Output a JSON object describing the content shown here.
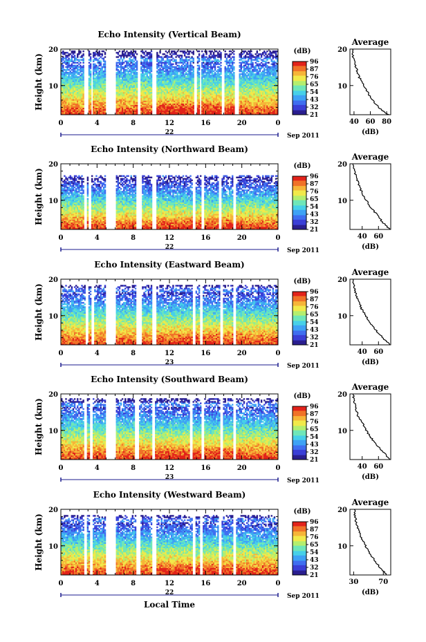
{
  "palette": [
    "#2b1f8f",
    "#3a3fd6",
    "#3f6ef0",
    "#3ea2f5",
    "#47d0e8",
    "#6fe6b8",
    "#b4ee6e",
    "#f1e94a",
    "#f6b538",
    "#f07228",
    "#e2231a"
  ],
  "colorbar": {
    "unit": "(dB)",
    "ticks": [
      "96",
      "87",
      "76",
      "65",
      "54",
      "43",
      "32",
      "21"
    ]
  },
  "avg_title": "Average",
  "avg_unit": "(dB)",
  "footer": {
    "date": "Sep 2011",
    "xlabel": "Local Time"
  },
  "chart_data": [
    {
      "type": "heatmap",
      "title": "Echo Intensity (Vertical Beam)",
      "ylabel": "Height (km)",
      "ylim": [
        2,
        20
      ],
      "yticks": [
        "20",
        "10"
      ],
      "xlim": [
        0,
        24
      ],
      "xticks": [
        "0",
        "4",
        "8",
        "12",
        "16",
        "20",
        "0"
      ],
      "day": "22",
      "gaps": [
        [
          2.6,
          3.0
        ],
        [
          3.3,
          3.5
        ],
        [
          4.9,
          6.0
        ],
        [
          8.4,
          8.8
        ],
        [
          10.1,
          10.5
        ],
        [
          14.7,
          15.0
        ],
        [
          15.3,
          15.6
        ],
        [
          17.7,
          18.1
        ],
        [
          19.2,
          19.6
        ]
      ],
      "top_km": 19.5,
      "hot_bias": 1,
      "average": {
        "xlim": [
          35,
          85
        ],
        "xticks": [
          "40",
          "60",
          "80"
        ],
        "heights": [
          2,
          4,
          6,
          8,
          10,
          12,
          14,
          16,
          18,
          20
        ],
        "values": [
          82,
          70,
          63,
          57,
          52,
          47,
          44,
          41,
          39,
          38
        ]
      }
    },
    {
      "type": "heatmap",
      "title": "Echo Intensity (Northward Beam)",
      "ylabel": "Height (km)",
      "ylim": [
        2,
        20
      ],
      "yticks": [
        "20",
        "10"
      ],
      "xlim": [
        0,
        24
      ],
      "xticks": [
        "0",
        "4",
        "8",
        "12",
        "16",
        "20",
        "0"
      ],
      "day": "22",
      "gaps": [
        [
          2.5,
          2.8
        ],
        [
          3.1,
          3.4
        ],
        [
          4.9,
          6.0
        ],
        [
          8.3,
          8.9
        ],
        [
          10.1,
          10.5
        ],
        [
          14.5,
          14.8
        ],
        [
          15.5,
          15.8
        ],
        [
          17.5,
          17.8
        ],
        [
          19.1,
          19.4
        ]
      ],
      "top_km": 17.0,
      "hot_bias": 0.5,
      "average": {
        "xlim": [
          25,
          75
        ],
        "xticks": [
          "40",
          "60"
        ],
        "heights": [
          2,
          4,
          6,
          8,
          10,
          12,
          14,
          16,
          18,
          20
        ],
        "values": [
          74,
          65,
          58,
          51,
          45,
          40,
          36,
          33,
          30,
          29
        ]
      }
    },
    {
      "type": "heatmap",
      "title": "Echo Intensity (Eastward Beam)",
      "ylabel": "Height (km)",
      "ylim": [
        2,
        20
      ],
      "yticks": [
        "20",
        "10"
      ],
      "xlim": [
        0,
        24
      ],
      "xticks": [
        "0",
        "4",
        "8",
        "12",
        "16",
        "20",
        "0"
      ],
      "day": "23",
      "gaps": [
        [
          2.8,
          3.1
        ],
        [
          3.3,
          3.6
        ],
        [
          4.9,
          6.0
        ],
        [
          8.3,
          8.9
        ],
        [
          10.1,
          10.5
        ],
        [
          14.6,
          14.9
        ],
        [
          15.4,
          15.7
        ],
        [
          17.6,
          17.9
        ],
        [
          19.0,
          19.4
        ]
      ],
      "top_km": 18.5,
      "hot_bias": 0.5,
      "average": {
        "xlim": [
          25,
          75
        ],
        "xticks": [
          "40",
          "60"
        ],
        "heights": [
          2,
          4,
          6,
          8,
          10,
          12,
          14,
          16,
          18,
          20
        ],
        "values": [
          74,
          65,
          57,
          50,
          44,
          39,
          35,
          32,
          30,
          29
        ]
      }
    },
    {
      "type": "heatmap",
      "title": "Echo Intensity (Southward Beam)",
      "ylabel": "Height (km)",
      "ylim": [
        2,
        20
      ],
      "yticks": [
        "20",
        "10"
      ],
      "xlim": [
        0,
        24
      ],
      "xticks": [
        "0",
        "4",
        "8",
        "12",
        "16",
        "20",
        "0"
      ],
      "day": "23",
      "gaps": [
        [
          2.6,
          2.9
        ],
        [
          3.2,
          3.5
        ],
        [
          4.9,
          6.0
        ],
        [
          8.2,
          8.7
        ],
        [
          10.1,
          10.4
        ],
        [
          14.3,
          14.6
        ],
        [
          15.6,
          15.9
        ],
        [
          17.6,
          17.9
        ],
        [
          19.0,
          19.3
        ]
      ],
      "top_km": 19.0,
      "hot_bias": 0.8,
      "average": {
        "xlim": [
          25,
          75
        ],
        "xticks": [
          "40",
          "60"
        ],
        "heights": [
          2,
          4,
          6,
          8,
          10,
          12,
          14,
          16,
          18,
          20
        ],
        "values": [
          74,
          66,
          58,
          51,
          45,
          40,
          35,
          32,
          30,
          29
        ]
      }
    },
    {
      "type": "heatmap",
      "title": "Echo Intensity (Westward Beam)",
      "ylabel": "Height (km)",
      "ylim": [
        2,
        20
      ],
      "yticks": [
        "20",
        "10"
      ],
      "xlim": [
        0,
        24
      ],
      "xticks": [
        "0",
        "4",
        "8",
        "12",
        "16",
        "20",
        "0"
      ],
      "day": "22",
      "gaps": [
        [
          2.6,
          2.9
        ],
        [
          3.2,
          3.5
        ],
        [
          4.9,
          6.0
        ],
        [
          8.3,
          8.8
        ],
        [
          10.1,
          10.5
        ],
        [
          14.6,
          14.9
        ],
        [
          15.4,
          15.7
        ],
        [
          17.5,
          17.8
        ],
        [
          19.0,
          19.4
        ]
      ],
      "top_km": 18.5,
      "hot_bias": 0.7,
      "average": {
        "xlim": [
          25,
          80
        ],
        "xticks": [
          "30",
          "70"
        ],
        "heights": [
          2,
          4,
          6,
          8,
          10,
          12,
          14,
          16,
          18,
          20
        ],
        "values": [
          75,
          66,
          58,
          52,
          46,
          41,
          37,
          34,
          32,
          31
        ]
      }
    }
  ]
}
